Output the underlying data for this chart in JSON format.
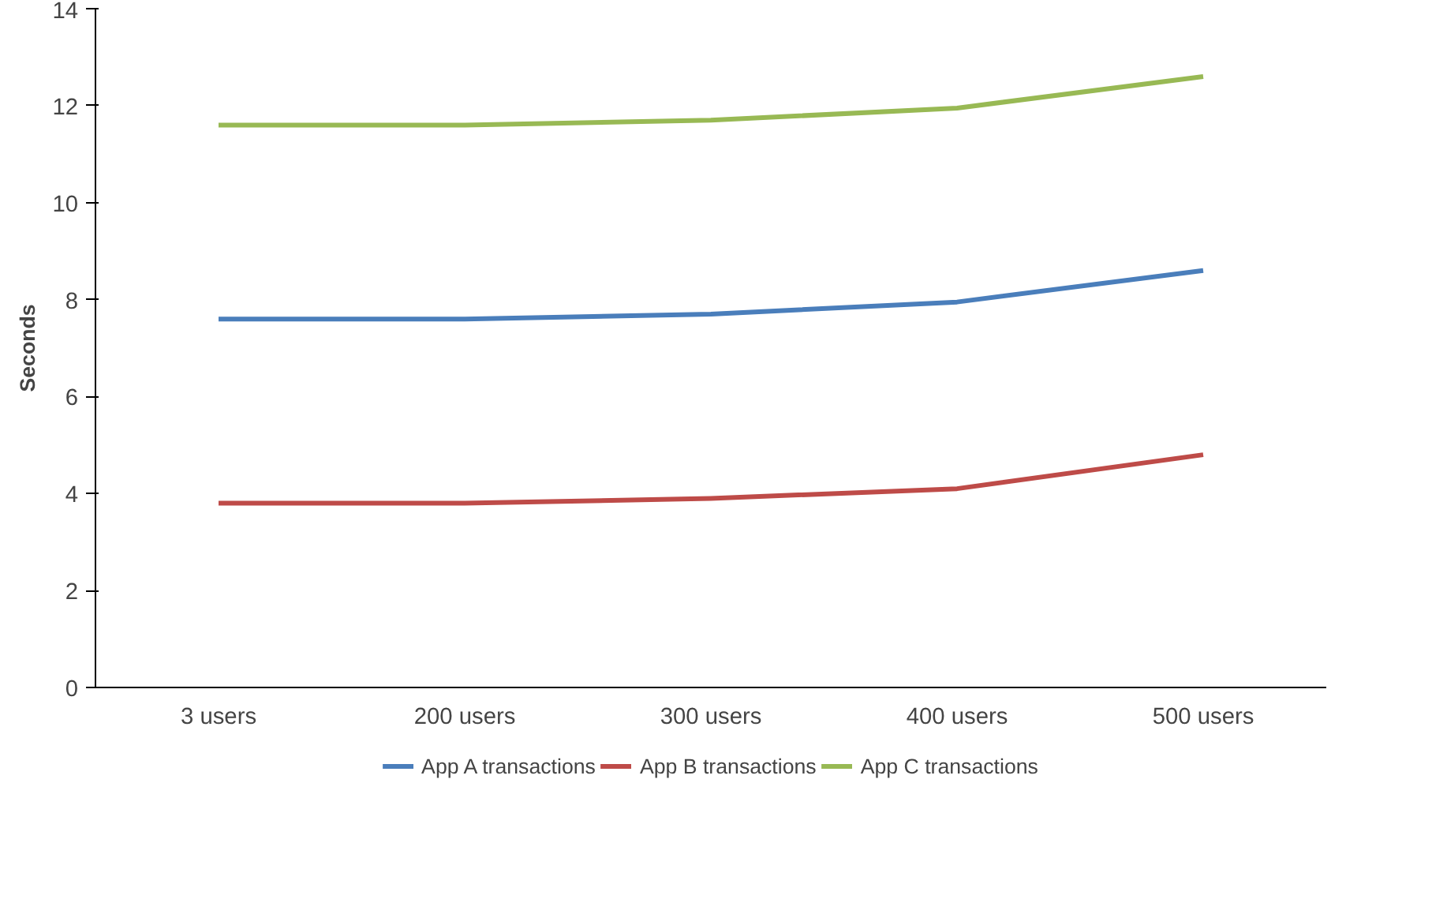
{
  "chart_data": {
    "type": "line",
    "ylabel": "Seconds",
    "categories": [
      "3 users",
      "200 users",
      "300 users",
      "400 users",
      "500 users"
    ],
    "series": [
      {
        "name": "App A transactions",
        "color": "#4a7ebb",
        "values": [
          7.6,
          7.6,
          7.7,
          7.95,
          8.6
        ]
      },
      {
        "name": "App B transactions",
        "color": "#be4b48",
        "values": [
          3.8,
          3.8,
          3.9,
          4.1,
          4.8
        ]
      },
      {
        "name": "App C transactions",
        "color": "#98b954",
        "values": [
          11.6,
          11.6,
          11.7,
          11.95,
          12.6
        ]
      }
    ],
    "ylim": [
      0,
      14
    ],
    "yticks": [
      0,
      2,
      4,
      6,
      8,
      10,
      12,
      14
    ],
    "grid": false,
    "legend": "bottom",
    "marker": "none",
    "line_style": "solid"
  }
}
